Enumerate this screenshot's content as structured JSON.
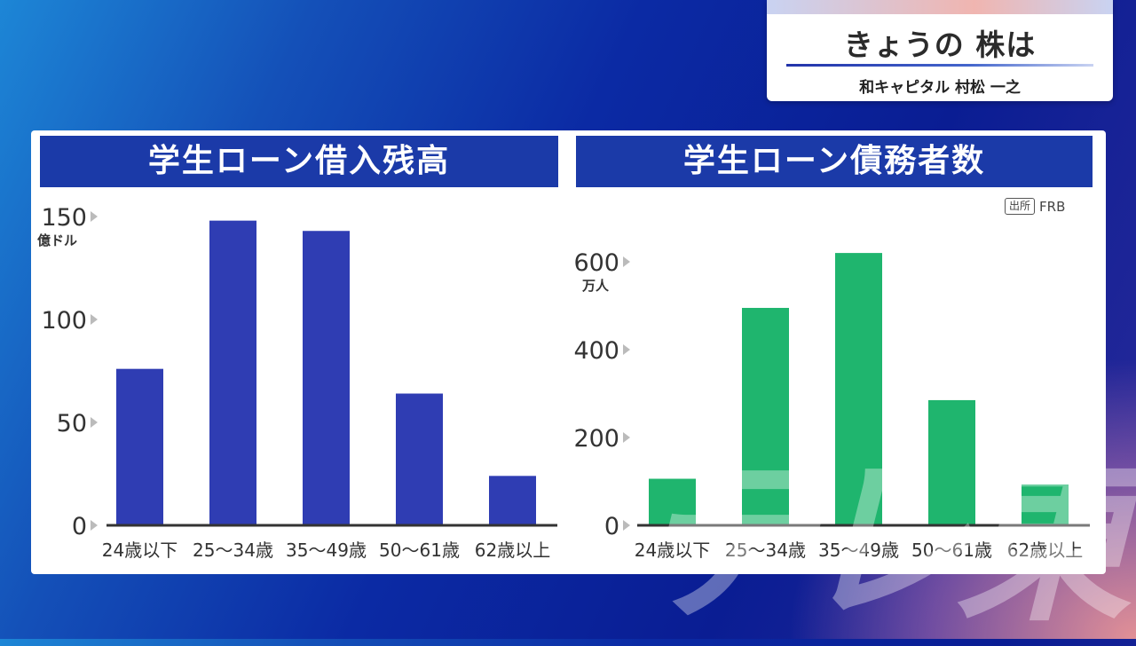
{
  "logo": {
    "title": "きょうの 株は",
    "subtitle": "和キャピタル 村松 一之"
  },
  "source": {
    "tag": "出所",
    "name": "FRB"
  },
  "watermark_text": "テレ東",
  "chart_data": [
    {
      "type": "bar",
      "title": "学生ローン借入残高",
      "ylabel": "億ドル",
      "categories": [
        "24歳以下",
        "25〜34歳",
        "35〜49歳",
        "50〜61歳",
        "62歳以上"
      ],
      "values": [
        76,
        148,
        143,
        64,
        24
      ],
      "yticks": [
        0,
        50,
        100,
        150
      ],
      "ylim": [
        0,
        150
      ],
      "color": "#2f3db3",
      "grid": false
    },
    {
      "type": "bar",
      "title": "学生ローン債務者数",
      "ylabel": "万人",
      "categories": [
        "24歳以下",
        "25〜34歳",
        "35〜49歳",
        "50〜61歳",
        "62歳以上"
      ],
      "values": [
        106,
        495,
        620,
        285,
        93
      ],
      "yticks": [
        0,
        200,
        400,
        600
      ],
      "ylim": [
        0,
        600
      ],
      "color": "#1fb56e",
      "grid": false
    }
  ]
}
